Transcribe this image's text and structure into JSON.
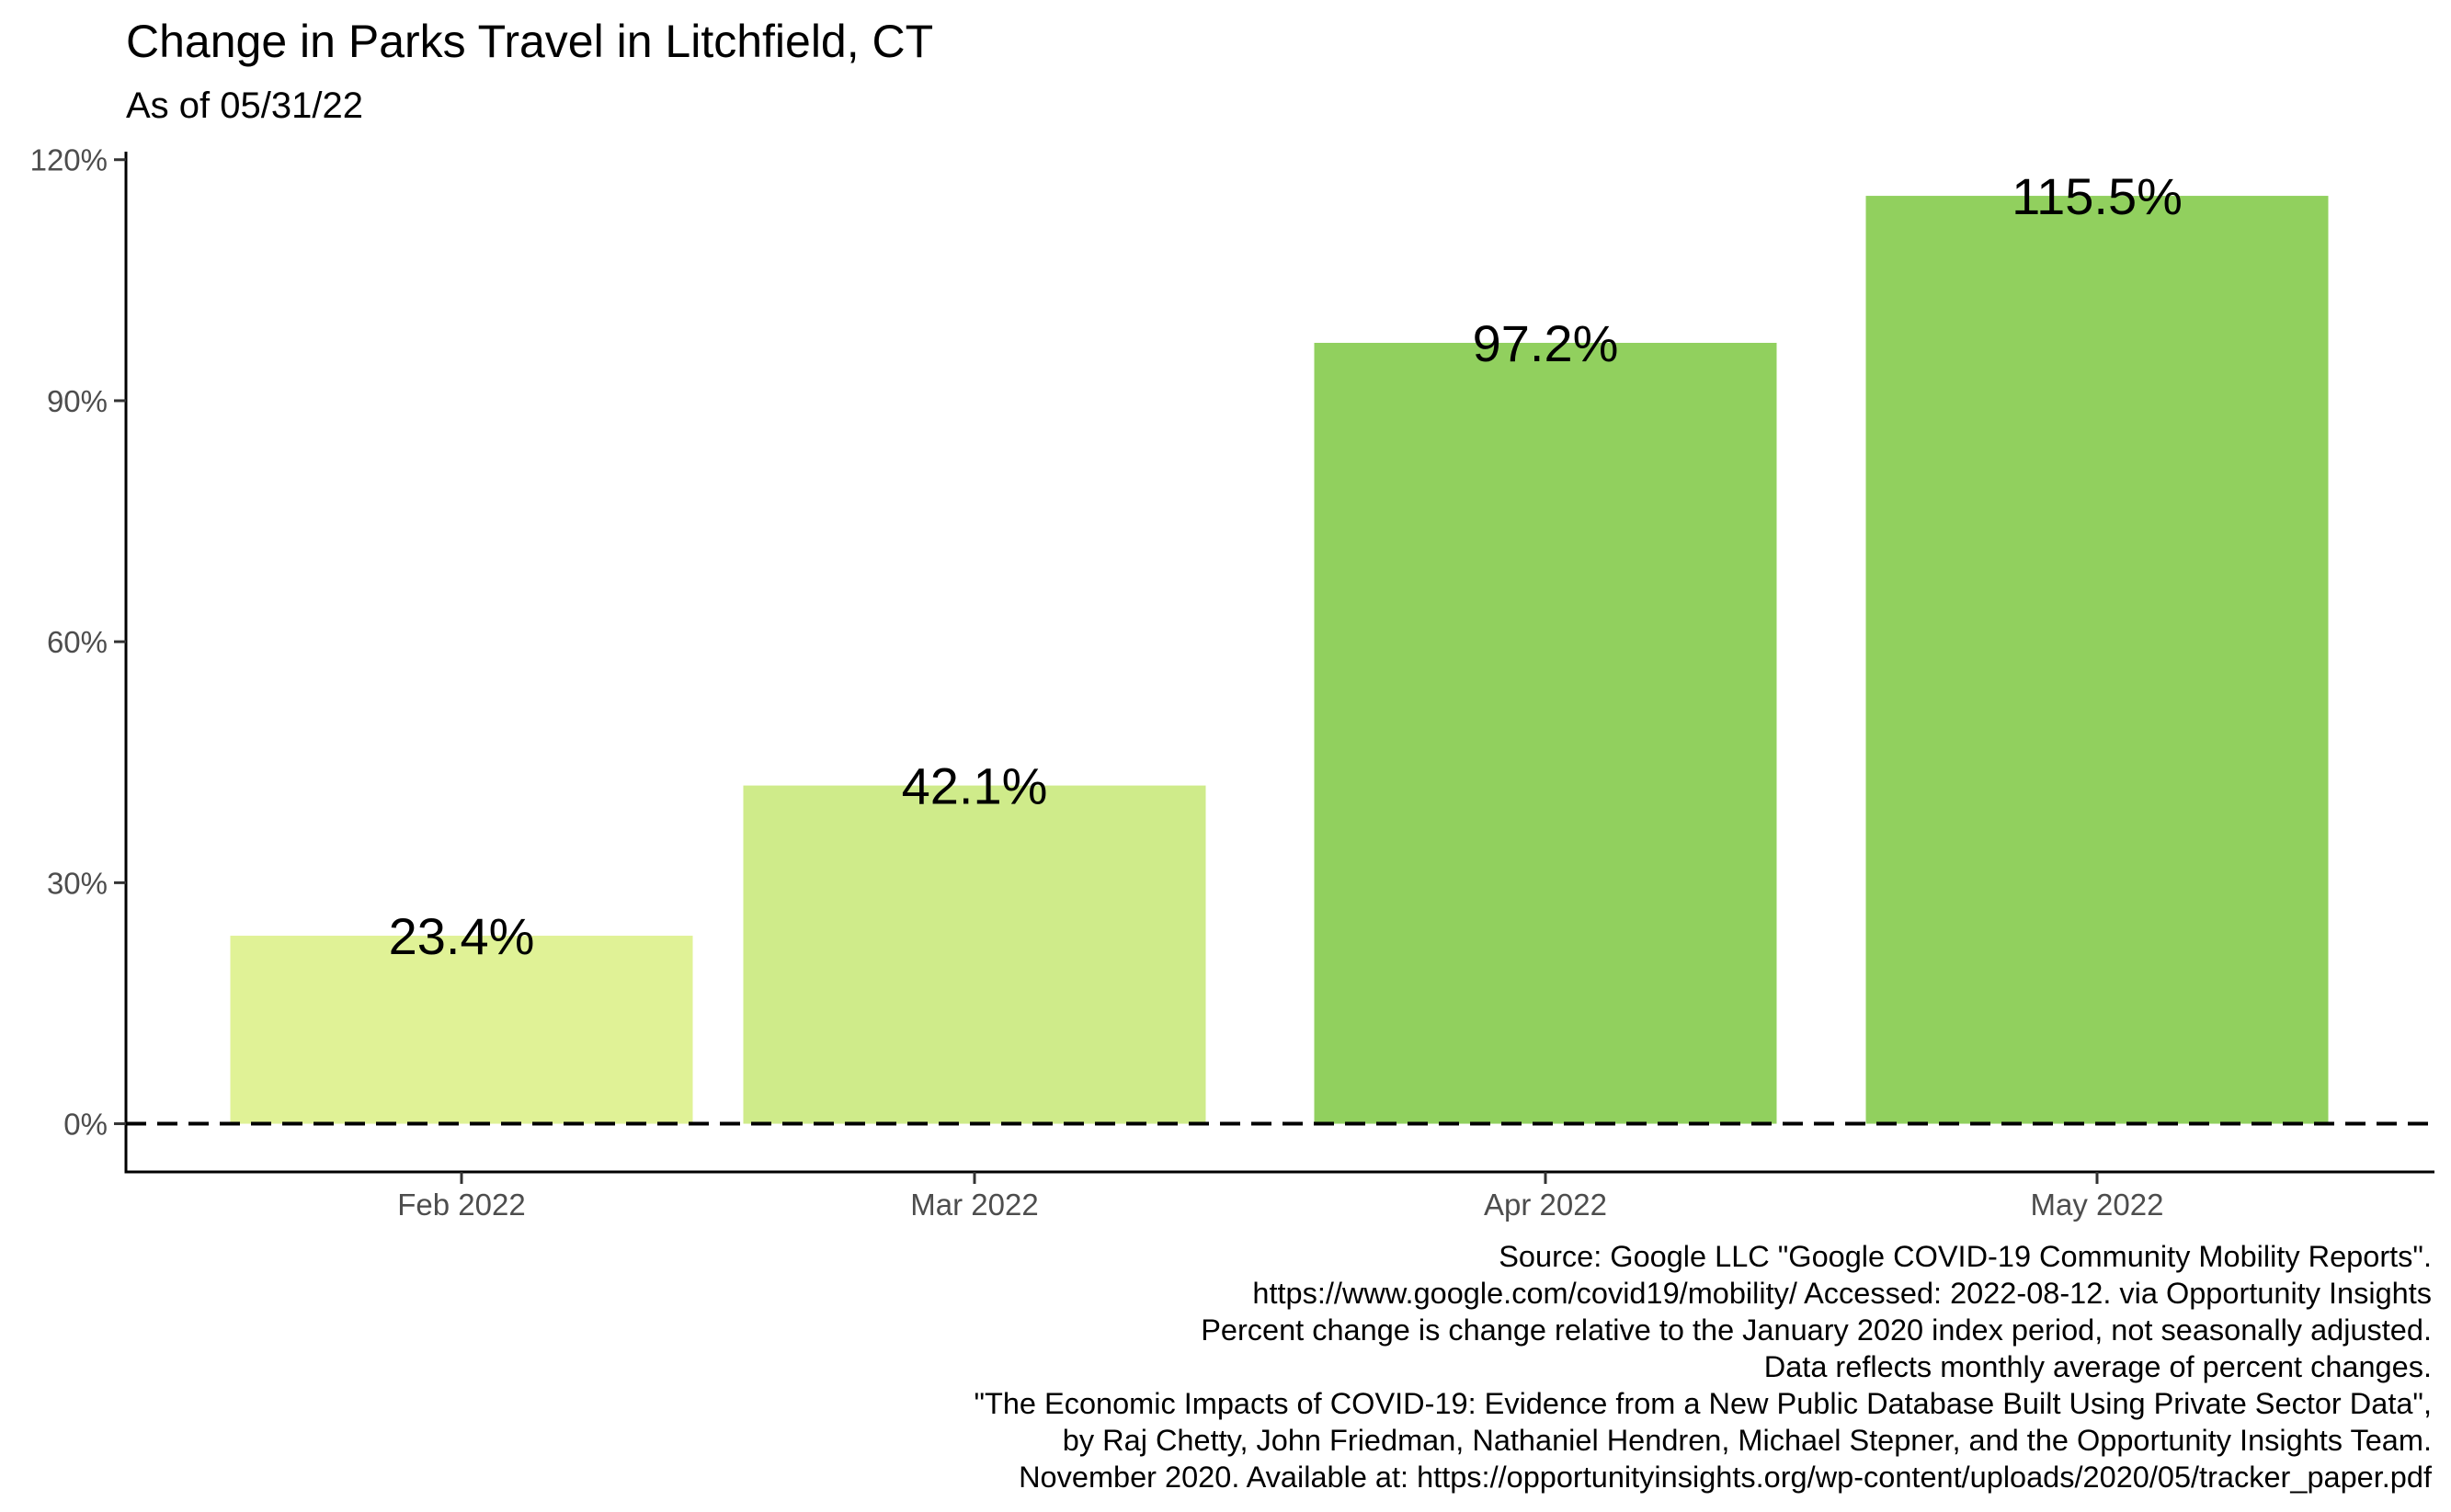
{
  "chart_data": {
    "type": "bar",
    "title": "Change in Parks Travel in Litchfield, CT",
    "subtitle": "As of 05/31/22",
    "xlabel": "",
    "ylabel": "",
    "categories": [
      "Feb 2022",
      "Mar 2022",
      "Apr 2022",
      "May 2022"
    ],
    "values": [
      23.4,
      42.1,
      97.2,
      115.5
    ],
    "data_labels": [
      "23.4%",
      "42.1%",
      "97.2%",
      "115.5%"
    ],
    "bar_colors": [
      "#e0f296",
      "#cfeb8a",
      "#91d05e",
      "#91d05e"
    ],
    "ylim": [
      -6,
      121
    ],
    "yticks": [
      0,
      30,
      60,
      90,
      120
    ],
    "ytick_labels": [
      "0%",
      "30%",
      "60%",
      "90%",
      "120%"
    ],
    "reference_line": {
      "y": 0,
      "style": "dashed",
      "color": "#000000"
    },
    "grid": false,
    "legend": "none"
  },
  "caption_lines": [
    "Source: Google LLC \"Google COVID-19 Community Mobility Reports\".",
    "https://www.google.com/covid19/mobility/ Accessed: 2022-08-12. via Opportunity Insights",
    "Percent change is change relative to the January 2020 index period, not seasonally adjusted.",
    "Data reflects monthly average of percent changes.",
    "\"The Economic Impacts of COVID-19: Evidence from a New Public Database Built Using Private Sector Data\",",
    "by Raj Chetty, John Friedman, Nathaniel Hendren, Michael Stepner, and the Opportunity Insights Team.",
    "November 2020. Available at: https://opportunityinsights.org/wp-content/uploads/2020/05/tracker_paper.pdf"
  ]
}
